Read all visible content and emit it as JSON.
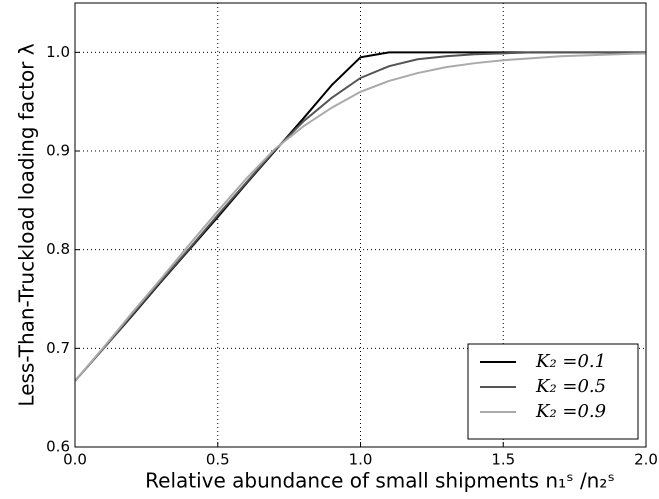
{
  "chart_data": {
    "type": "line",
    "xlabel": "Relative abundance of small shipments n₁ˢ /n₂ˢ",
    "ylabel": "Less-Than-Truckload loading factor λ",
    "x": [
      0,
      0.1,
      0.2,
      0.3,
      0.4,
      0.5,
      0.6,
      0.7,
      0.8,
      0.9,
      1.0,
      1.1,
      1.2,
      1.3,
      1.4,
      1.5,
      1.6,
      1.7,
      1.8,
      1.9,
      2.0
    ],
    "series": [
      {
        "name": "K₂ =0.1",
        "color": "#000000",
        "values": [
          0.667,
          0.7,
          0.733,
          0.767,
          0.8,
          0.833,
          0.867,
          0.9,
          0.933,
          0.967,
          0.995,
          1.0,
          1.0,
          1.0,
          1.0,
          1.0,
          1.0,
          1.0,
          1.0,
          1.0,
          1.0
        ]
      },
      {
        "name": "K₂ =0.5",
        "color": "#555555",
        "values": [
          0.667,
          0.7,
          0.734,
          0.768,
          0.801,
          0.835,
          0.868,
          0.901,
          0.93,
          0.954,
          0.974,
          0.986,
          0.993,
          0.996,
          0.998,
          0.999,
          1.0,
          1.0,
          1.0,
          1.0,
          1.0
        ]
      },
      {
        "name": "K₂ =0.9",
        "color": "#aaaaaa",
        "values": [
          0.667,
          0.701,
          0.736,
          0.77,
          0.805,
          0.839,
          0.872,
          0.902,
          0.925,
          0.944,
          0.96,
          0.971,
          0.979,
          0.985,
          0.989,
          0.992,
          0.994,
          0.996,
          0.997,
          0.998,
          0.999
        ]
      }
    ],
    "xlim": [
      0,
      2.0
    ],
    "xticks": [
      {
        "value": 0,
        "label": "0.0"
      },
      0.5,
      {
        "value": 1,
        "label": "1.0"
      },
      1.5,
      {
        "value": 2,
        "label": "2.0"
      }
    ],
    "ylim": [
      0.6,
      1.05
    ],
    "yticks": [
      0.6,
      0.7,
      0.8,
      0.9,
      {
        "value": 1,
        "label": "1.0"
      }
    ],
    "grid": true,
    "legend": "lower right"
  }
}
